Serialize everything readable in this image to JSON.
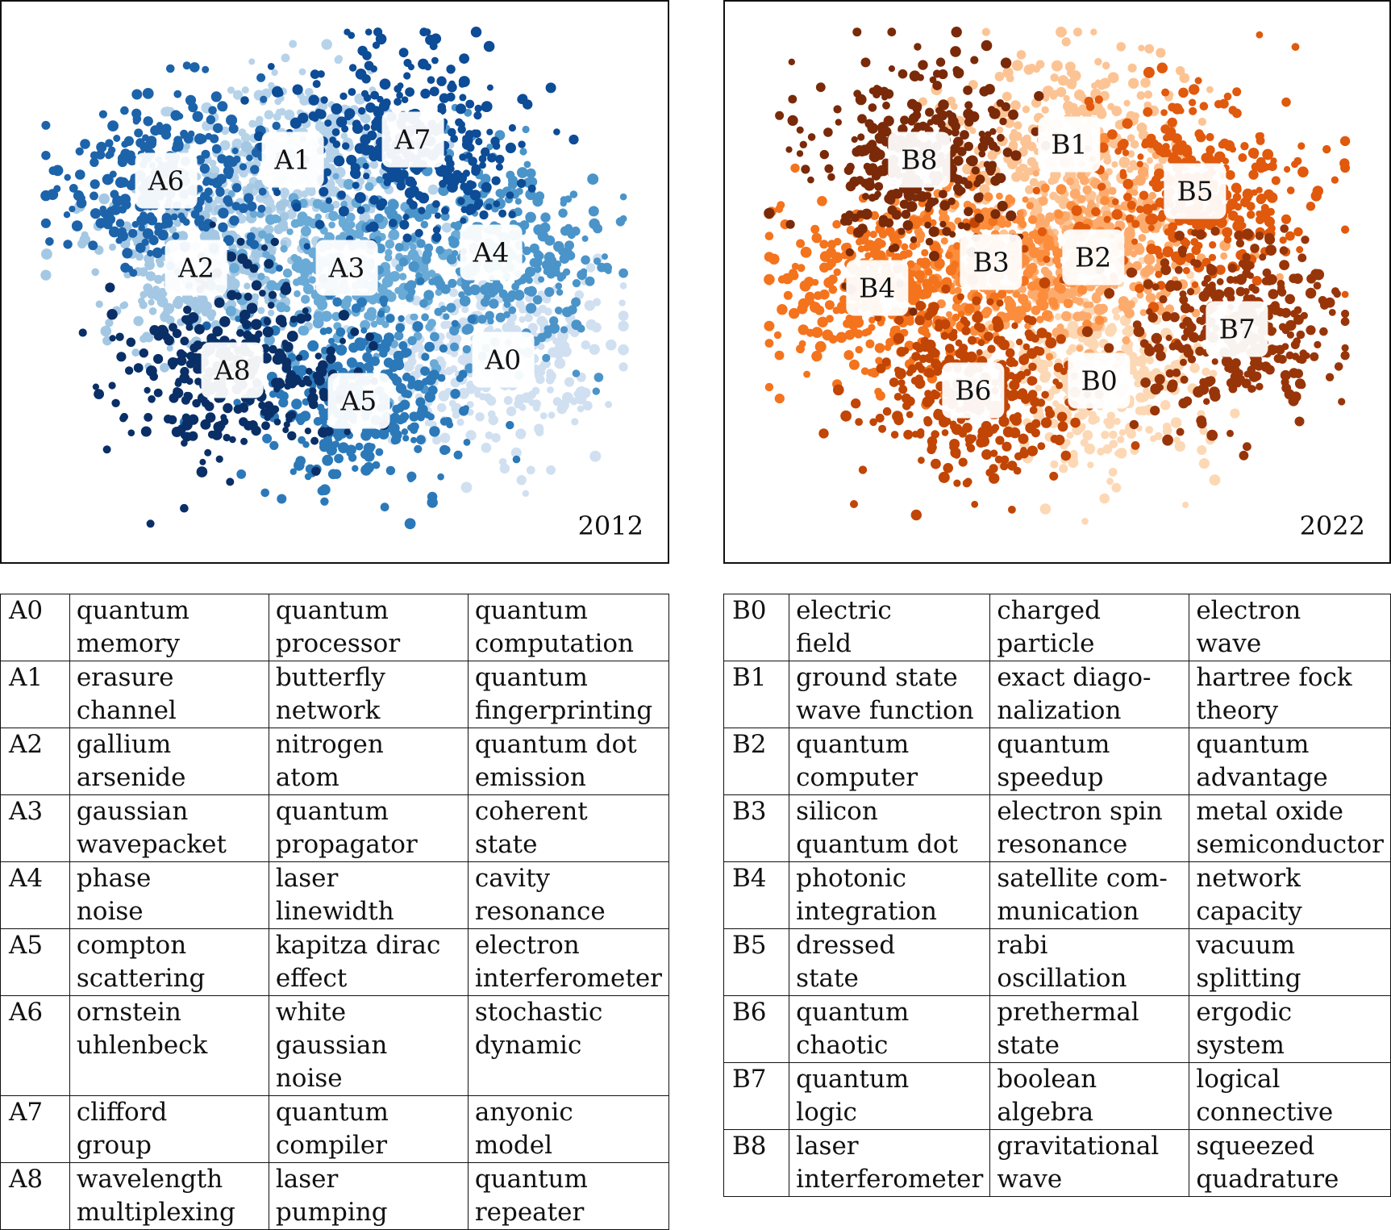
{
  "chart_data": [
    {
      "type": "scatter",
      "annotation": "2012",
      "colormap": "blues",
      "clusters": [
        {
          "label": "A0",
          "color": "#d0e0f1",
          "center": [
            0.78,
            0.66
          ],
          "spread": 0.12,
          "n": 330
        },
        {
          "label": "A1",
          "color": "#b7d3ea",
          "center": [
            0.43,
            0.27
          ],
          "spread": 0.11,
          "n": 320
        },
        {
          "label": "A2",
          "color": "#a4c8e3",
          "center": [
            0.27,
            0.48
          ],
          "spread": 0.12,
          "n": 320
        },
        {
          "label": "A3",
          "color": "#6aaad6",
          "center": [
            0.52,
            0.48
          ],
          "spread": 0.11,
          "n": 300
        },
        {
          "label": "A4",
          "color": "#4a94c9",
          "center": [
            0.76,
            0.45
          ],
          "spread": 0.13,
          "n": 340
        },
        {
          "label": "A5",
          "color": "#2b79b9",
          "center": [
            0.54,
            0.74
          ],
          "spread": 0.12,
          "n": 320
        },
        {
          "label": "A6",
          "color": "#1c63aa",
          "center": [
            0.22,
            0.31
          ],
          "spread": 0.12,
          "n": 300
        },
        {
          "label": "A7",
          "color": "#0d4c96",
          "center": [
            0.63,
            0.23
          ],
          "spread": 0.12,
          "n": 320
        },
        {
          "label": "A8",
          "color": "#0a2f67",
          "center": [
            0.33,
            0.68
          ],
          "spread": 0.12,
          "n": 300
        }
      ]
    },
    {
      "type": "scatter",
      "annotation": "2022",
      "colormap": "oranges",
      "clusters": [
        {
          "label": "B0",
          "color": "#fdd8b5",
          "center": [
            0.57,
            0.7
          ],
          "spread": 0.12,
          "n": 320
        },
        {
          "label": "B1",
          "color": "#fcc494",
          "center": [
            0.52,
            0.24
          ],
          "spread": 0.13,
          "n": 330
        },
        {
          "label": "B2",
          "color": "#fdab6c",
          "center": [
            0.56,
            0.46
          ],
          "spread": 0.11,
          "n": 300
        },
        {
          "label": "B3",
          "color": "#fb8d3d",
          "center": [
            0.39,
            0.47
          ],
          "spread": 0.11,
          "n": 300
        },
        {
          "label": "B4",
          "color": "#f4731d",
          "center": [
            0.2,
            0.52
          ],
          "spread": 0.12,
          "n": 330
        },
        {
          "label": "B5",
          "color": "#e0590c",
          "center": [
            0.73,
            0.33
          ],
          "spread": 0.12,
          "n": 330
        },
        {
          "label": "B6",
          "color": "#c14504",
          "center": [
            0.36,
            0.72
          ],
          "spread": 0.12,
          "n": 320
        },
        {
          "label": "B7",
          "color": "#983508",
          "center": [
            0.8,
            0.6
          ],
          "spread": 0.12,
          "n": 320
        },
        {
          "label": "B8",
          "color": "#7a2a08",
          "center": [
            0.27,
            0.27
          ],
          "spread": 0.12,
          "n": 330
        }
      ]
    }
  ],
  "tables": {
    "left": [
      {
        "id": "A0",
        "terms": [
          "quantum\nmemory",
          "quantum\nprocessor",
          "quantum\ncomputation"
        ]
      },
      {
        "id": "A1",
        "terms": [
          "erasure\nchannel",
          "butterfly\nnetwork",
          "quantum\nfingerprinting"
        ]
      },
      {
        "id": "A2",
        "terms": [
          "gallium\narsenide",
          "nitrogen\natom",
          "quantum dot\nemission"
        ]
      },
      {
        "id": "A3",
        "terms": [
          "gaussian\nwavepacket",
          "quantum\npropagator",
          "coherent\nstate"
        ]
      },
      {
        "id": "A4",
        "terms": [
          "phase\nnoise",
          "laser\nlinewidth",
          "cavity\nresonance"
        ]
      },
      {
        "id": "A5",
        "terms": [
          "compton\nscattering",
          "kapitza dirac\neffect",
          "electron\ninterferometer"
        ]
      },
      {
        "id": "A6",
        "terms": [
          "ornstein\nuhlenbeck",
          "white gaussian\nnoise",
          "stochastic\ndynamic"
        ]
      },
      {
        "id": "A7",
        "terms": [
          "clifford\ngroup",
          "quantum\ncompiler",
          "anyonic\nmodel"
        ]
      },
      {
        "id": "A8",
        "terms": [
          "wavelength\nmultiplexing",
          "laser\npumping",
          "quantum\nrepeater"
        ]
      }
    ],
    "right": [
      {
        "id": "B0",
        "terms": [
          "electric\nfield",
          "charged\nparticle",
          "electron\nwave"
        ]
      },
      {
        "id": "B1",
        "terms": [
          "ground state\nwave function",
          "exact diago-\nnalization",
          "hartree fock\ntheory"
        ]
      },
      {
        "id": "B2",
        "terms": [
          "quantum\ncomputer",
          "quantum\nspeedup",
          "quantum\nadvantage"
        ]
      },
      {
        "id": "B3",
        "terms": [
          "silicon\nquantum dot",
          "electron spin\nresonance",
          "metal oxide\nsemiconductor"
        ]
      },
      {
        "id": "B4",
        "terms": [
          "photonic\nintegration",
          "satellite com-\nmunication",
          "network\ncapacity"
        ]
      },
      {
        "id": "B5",
        "terms": [
          "dressed\nstate",
          "rabi\noscillation",
          "vacuum\nsplitting"
        ]
      },
      {
        "id": "B6",
        "terms": [
          "quantum\nchaotic",
          "prethermal\nstate",
          "ergodic\nsystem"
        ]
      },
      {
        "id": "B7",
        "terms": [
          "quantum\nlogic",
          "boolean\nalgebra",
          "logical\nconnective"
        ]
      },
      {
        "id": "B8",
        "terms": [
          "laser\ninterferometer",
          "gravitational\nwave",
          "squeezed\nquadrature"
        ]
      }
    ]
  }
}
